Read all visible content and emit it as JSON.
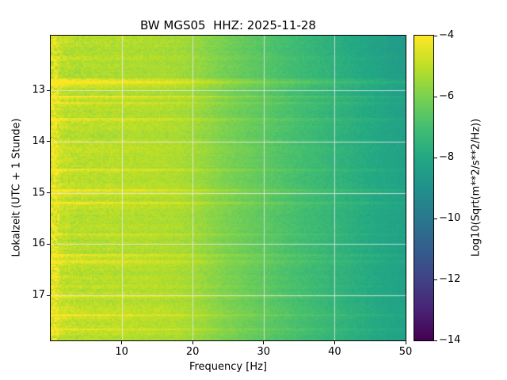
{
  "figure": {
    "title": "BW MGS05  HHZ: 2025-11-28",
    "station": "BW MGS05",
    "channel": "HHZ",
    "date": "2025-11-28",
    "xlabel": "Frequency [Hz]",
    "ylabel": "Lokalzeit (UTC + 1 Stunde)",
    "colorbar_label": "Log10(Sqrt(m**2/s**2/Hz))"
  },
  "chart_data": {
    "type": "heatmap",
    "title": "BW MGS05  HHZ: 2025-11-28",
    "xlabel": "Frequency [Hz]",
    "ylabel": "Lokalzeit (UTC + 1 Stunde)",
    "x_range": [
      0,
      50
    ],
    "xticks": [
      10,
      20,
      30,
      40,
      50
    ],
    "xtick_labels": [
      "10",
      "20",
      "30",
      "40",
      "50"
    ],
    "y_range": [
      11.93,
      17.88
    ],
    "yticks": [
      13,
      14,
      15,
      16,
      17
    ],
    "ytick_labels": [
      "13",
      "14",
      "15",
      "16",
      "17"
    ],
    "grid": true,
    "colormap": "viridis",
    "colorbar": {
      "label": "Log10(Sqrt(m**2/s**2/Hz))",
      "range": [
        -14,
        -4
      ],
      "ticks": [
        -4,
        -6,
        -8,
        -10,
        -12,
        -14
      ],
      "tick_labels": [
        "−4",
        "−6",
        "−8",
        "−10",
        "−12",
        "−14"
      ]
    },
    "spectral_profile": {
      "freq_hz": [
        0,
        0.4,
        0.8,
        1.5,
        3,
        6,
        10,
        14,
        18,
        21,
        25,
        30,
        35,
        40,
        45,
        50
      ],
      "log10_amp": [
        -4.8,
        -4.3,
        -4.45,
        -4.9,
        -5.05,
        -5.1,
        -5.1,
        -5.15,
        -5.25,
        -5.5,
        -6.0,
        -6.5,
        -7.0,
        -7.45,
        -7.9,
        -8.3
      ]
    },
    "time_stripe_strength": 0.45,
    "texture_noise": 0.16
  }
}
